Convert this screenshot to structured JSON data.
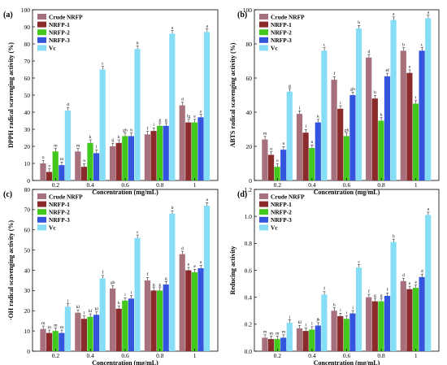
{
  "figure": {
    "legend": [
      "Crude NRFP",
      "NRFP-1",
      "NRFP-2",
      "NRFP-3",
      "Vc"
    ],
    "colors": [
      "#a6707c",
      "#8b2a2a",
      "#43c81e",
      "#3355dd",
      "#85def5"
    ]
  },
  "chart_data": [
    {
      "panel": "(a)",
      "type": "bar",
      "xlabel": "Concentration (mg/mL)",
      "ylabel": "DPPH radical scavenging activity (%)",
      "categories": [
        "0.2",
        "0.4",
        "0.6",
        "0.8",
        "1"
      ],
      "ylim": [
        0,
        100
      ],
      "yticks": [
        0,
        10,
        20,
        30,
        40,
        50,
        60,
        70,
        80,
        90,
        100
      ],
      "legend_position": "top-left",
      "series": [
        {
          "name": "Crude NRFP",
          "values": [
            10,
            17,
            20,
            27,
            44
          ],
          "letters": [
            "n",
            "m",
            "ij",
            "f",
            "d"
          ]
        },
        {
          "name": "NRFP-1",
          "values": [
            5,
            8,
            22,
            29,
            34
          ],
          "letters": [
            "o",
            "n",
            "k",
            "i",
            "fg"
          ]
        },
        {
          "name": "NRFP-2",
          "values": [
            17,
            22,
            26,
            32,
            34
          ],
          "letters": [
            "m",
            "k",
            "gh",
            "g",
            "e"
          ]
        },
        {
          "name": "NRFP-3",
          "values": [
            9,
            16,
            26,
            32,
            37
          ],
          "letters": [
            "m",
            "l",
            "h",
            "g",
            "e"
          ]
        },
        {
          "name": "Vc",
          "values": [
            41,
            65,
            77,
            86,
            87
          ],
          "letters": [
            "d",
            "c",
            "b",
            "a",
            "a"
          ]
        }
      ]
    },
    {
      "panel": "(b)",
      "type": "bar",
      "xlabel": "Concentration (mg/mL)",
      "ylabel": "ABTS radical scavenging activity (%)",
      "categories": [
        "0.2",
        "0.4",
        "0.6",
        "0.8",
        "1"
      ],
      "ylim": [
        0,
        100
      ],
      "yticks": [
        0,
        20,
        40,
        60,
        80,
        100
      ],
      "legend_position": "top-left",
      "series": [
        {
          "name": "Crude NRFP",
          "values": [
            24,
            39,
            59,
            72,
            76
          ],
          "letters": [
            "m",
            "j",
            "f",
            "d",
            "b"
          ]
        },
        {
          "name": "NRFP-1",
          "values": [
            15,
            28,
            42,
            48,
            63
          ],
          "letters": [
            "n",
            "l",
            "i",
            "h",
            "e"
          ]
        },
        {
          "name": "NRFP-2",
          "values": [
            8,
            19,
            26,
            35,
            45
          ],
          "letters": [
            "o",
            "n",
            "gh",
            "k",
            "i"
          ]
        },
        {
          "name": "NRFP-3",
          "values": [
            18,
            34,
            50,
            61,
            76
          ],
          "letters": [
            "n",
            "k",
            "gh",
            "ef",
            "c"
          ]
        },
        {
          "name": "Vc",
          "values": [
            52,
            76,
            89,
            94,
            95
          ],
          "letters": [
            "g",
            "c",
            "b",
            "a",
            "a"
          ]
        }
      ]
    },
    {
      "panel": "(c)",
      "type": "bar",
      "xlabel": "Concentration (mg/mL)",
      "ylabel": "·OH radical scavenging activity (%)",
      "categories": [
        "0.2",
        "0.4",
        "0.6",
        "0.8",
        "1"
      ],
      "ylim": [
        0,
        80
      ],
      "yticks": [
        0,
        10,
        20,
        30,
        40,
        50,
        60,
        70,
        80
      ],
      "legend_position": "top-left",
      "series": [
        {
          "name": "Crude NRFP",
          "values": [
            11,
            19,
            31,
            35,
            48
          ],
          "letters": [
            "m",
            "kl",
            "gh",
            "f",
            "d"
          ]
        },
        {
          "name": "NRFP-1",
          "values": [
            9,
            16,
            21,
            30,
            40
          ],
          "letters": [
            "m",
            "l",
            "k",
            "g",
            "e"
          ]
        },
        {
          "name": "NRFP-2",
          "values": [
            10,
            17,
            25,
            30,
            39
          ],
          "letters": [
            "m",
            "kl",
            "i",
            "g",
            "e"
          ]
        },
        {
          "name": "NRFP-3",
          "values": [
            9,
            18,
            26,
            33,
            41
          ],
          "letters": [
            "m",
            "kl",
            "i",
            "g",
            "e"
          ]
        },
        {
          "name": "Vc",
          "values": [
            22,
            36,
            56,
            68,
            72
          ],
          "letters": [
            "j",
            "f",
            "c",
            "b",
            "a"
          ]
        }
      ]
    },
    {
      "panel": "(d)",
      "type": "bar",
      "xlabel": "Concentration (mg/mL)",
      "ylabel": "Reducing activity",
      "categories": [
        "0.2",
        "0.4",
        "0.6",
        "0.8",
        "1"
      ],
      "ylim": [
        0,
        1.2
      ],
      "yticks": [
        "0.0",
        "0.2",
        "0.4",
        "0.6",
        "0.8",
        "1.0",
        "1.2"
      ],
      "legend_position": "top-left",
      "series": [
        {
          "name": "Crude NRFP",
          "values": [
            0.1,
            0.17,
            0.3,
            0.4,
            0.52
          ],
          "letters": [
            "m",
            "kl",
            "h",
            "f",
            "d"
          ]
        },
        {
          "name": "NRFP-1",
          "values": [
            0.09,
            0.15,
            0.26,
            0.37,
            0.46
          ],
          "letters": [
            "m",
            "l",
            "i",
            "g",
            "e"
          ]
        },
        {
          "name": "NRFP-2",
          "values": [
            0.09,
            0.16,
            0.24,
            0.37,
            0.47
          ],
          "letters": [
            "m",
            "l",
            "i",
            "g",
            "e"
          ]
        },
        {
          "name": "NRFP-3",
          "values": [
            0.1,
            0.19,
            0.28,
            0.41,
            0.55
          ],
          "letters": [
            "m",
            "jk",
            "i",
            "f",
            "d"
          ]
        },
        {
          "name": "Vc",
          "values": [
            0.21,
            0.42,
            0.62,
            0.81,
            1.01
          ],
          "letters": [
            "j",
            "f",
            "c",
            "b",
            "a"
          ]
        }
      ]
    }
  ]
}
